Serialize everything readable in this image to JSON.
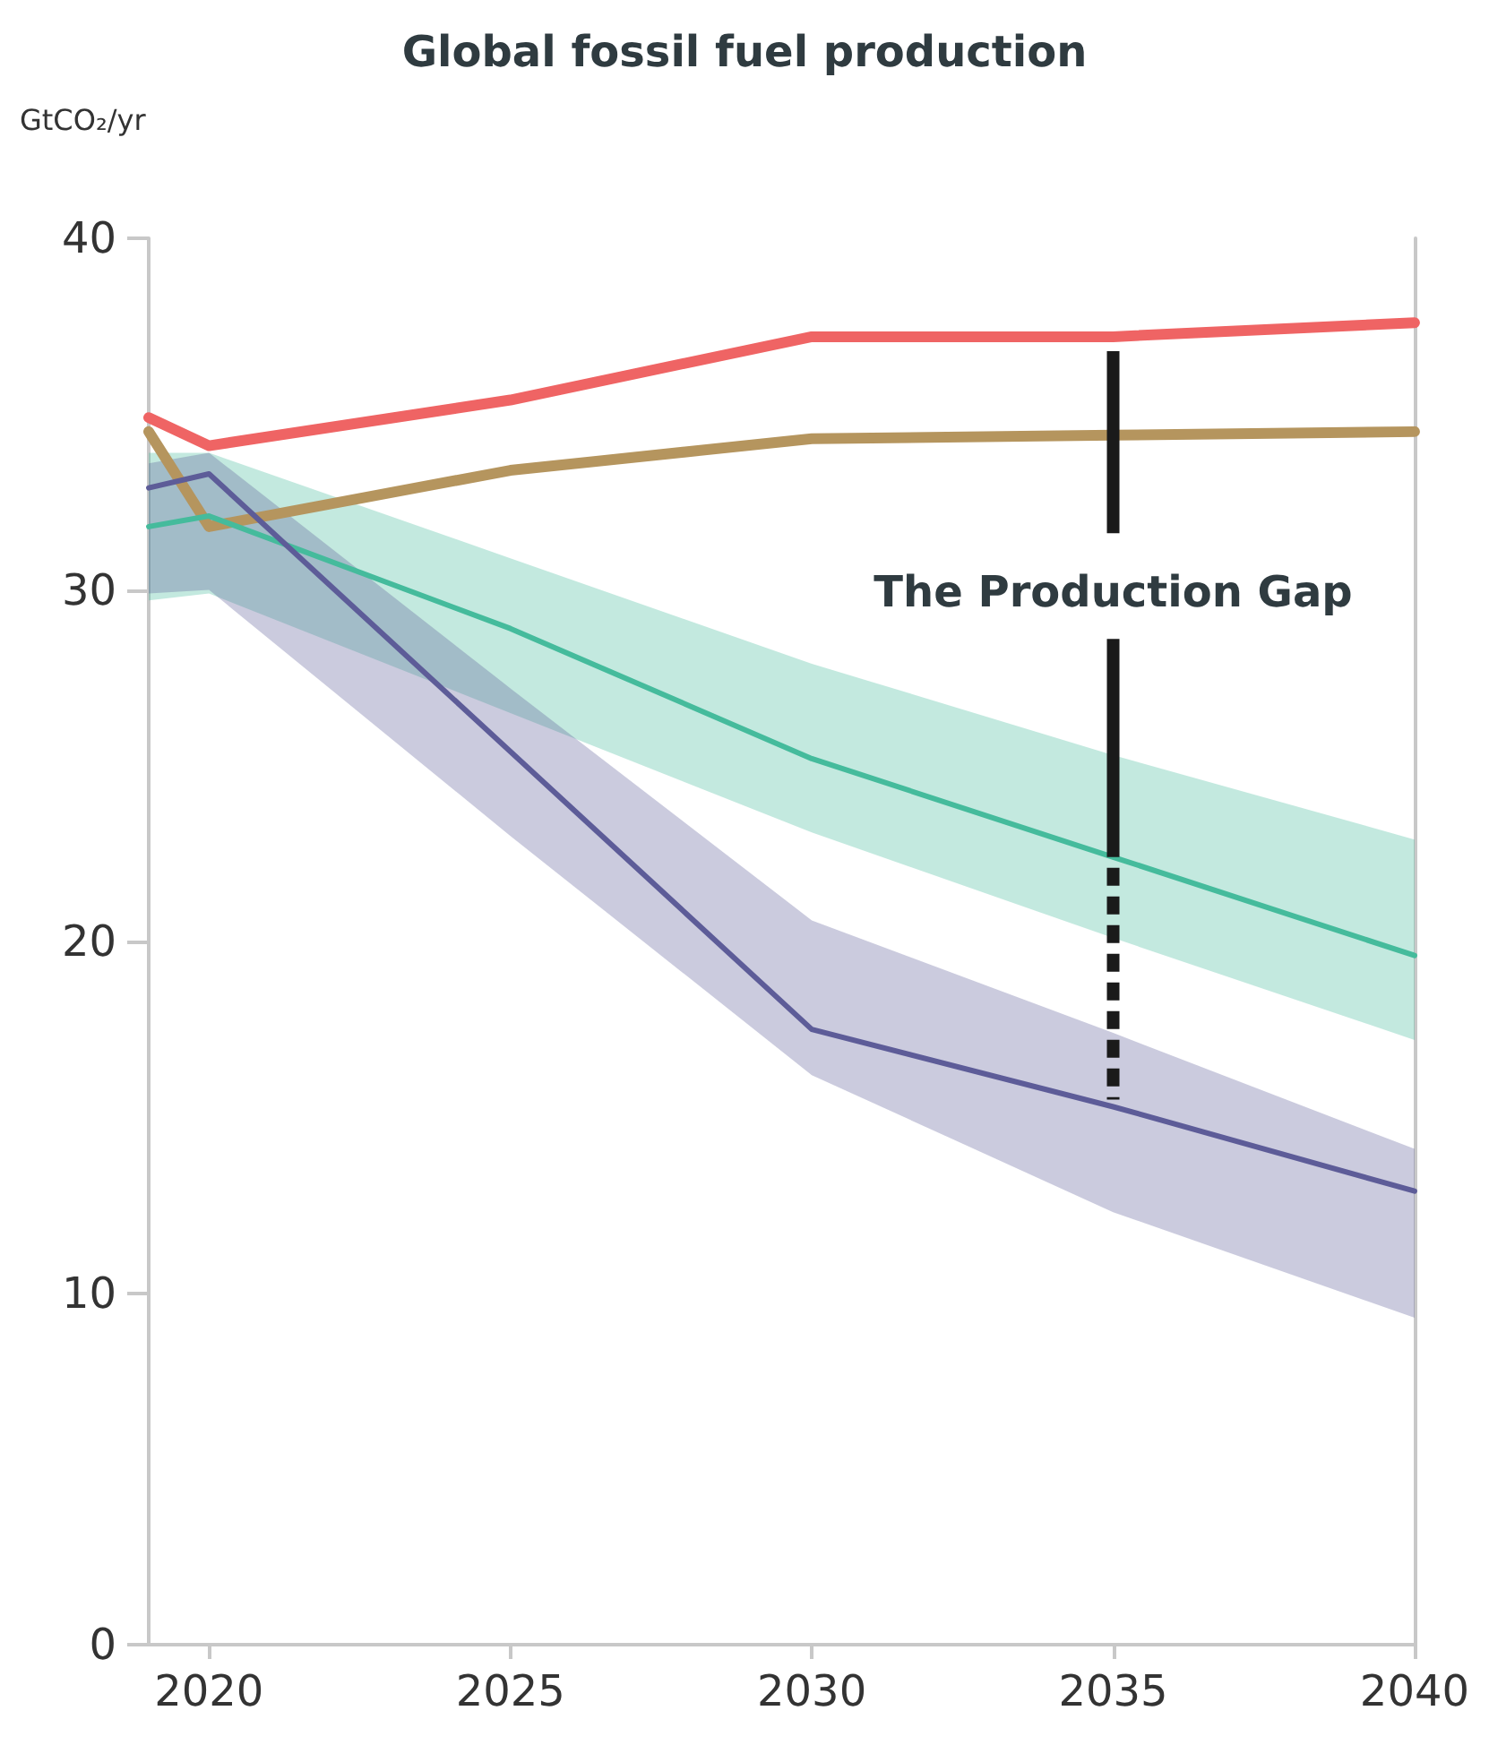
{
  "chart_data": {
    "type": "line",
    "title": "Global fossil fuel production",
    "ylabel": "GtCO₂/yr",
    "x": [
      2019,
      2020,
      2025,
      2030,
      2035,
      2040
    ],
    "series": [
      {
        "color": "#ef6464",
        "values": [
          34.9,
          34.1,
          35.4,
          37.2,
          37.2,
          37.6
        ]
      },
      {
        "color": "#b5955e",
        "values": [
          34.5,
          31.8,
          33.4,
          34.3,
          34.4,
          34.5
        ]
      },
      {
        "color": "#45bb9c",
        "values": [
          31.8,
          32.1,
          28.9,
          25.2,
          22.4,
          19.6
        ],
        "lower": [
          29.7,
          29.9,
          26.5,
          23.1,
          20.1,
          17.2
        ],
        "upper": [
          33.9,
          33.9,
          30.9,
          27.9,
          25.3,
          22.9
        ]
      },
      {
        "color": "#5d5c98",
        "values": [
          32.9,
          33.3,
          25.4,
          17.5,
          15.3,
          12.9
        ],
        "lower": [
          29.9,
          30.0,
          23.0,
          16.2,
          12.3,
          9.3
        ],
        "upper": [
          33.6,
          33.9,
          27.2,
          20.6,
          17.4,
          14.1
        ]
      }
    ],
    "xlim": [
      2019,
      2040
    ],
    "xticks": [
      2020,
      2025,
      2030,
      2035,
      2040
    ],
    "ylim": [
      0,
      40
    ],
    "yticks": [
      0,
      10,
      20,
      30,
      40
    ],
    "grid": false,
    "marker": "none",
    "line_style": "solid",
    "ref_lines": [
      {
        "axis": "x",
        "value": 2035,
        "label": "The Production Gap",
        "color": "#1a1a1a",
        "line_style": "solid"
      },
      {
        "axis": "x",
        "value": 2035,
        "color": "#1a1a1a",
        "line_style": "dashed"
      }
    ]
  }
}
